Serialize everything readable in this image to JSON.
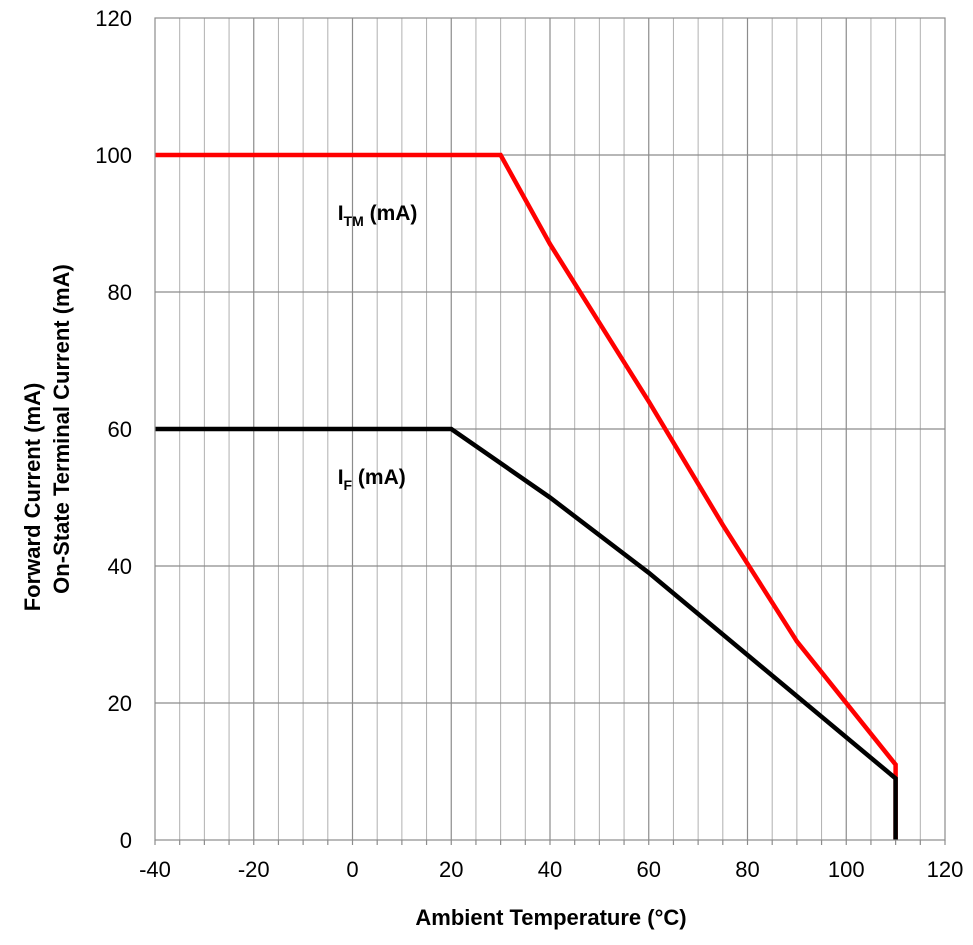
{
  "chart_data": {
    "type": "line",
    "xlabel": "Ambient Temperature (°C)",
    "ylabel_lines": [
      "Forward Current (mA)",
      "On-State Terminal Current (mA)"
    ],
    "xlim": [
      -40,
      120
    ],
    "ylim": [
      0,
      120
    ],
    "x_ticks": [
      "-40",
      "-20",
      "0",
      "20",
      "40",
      "60",
      "80",
      "100",
      "120"
    ],
    "y_ticks": [
      "0",
      "20",
      "40",
      "60",
      "80",
      "100",
      "120"
    ],
    "x_major_step": 20,
    "x_minor_step": 5,
    "y_major_step": 20,
    "grid": true,
    "series": [
      {
        "label_main": "I",
        "label_sub": "TM",
        "label_suffix": " (mA)",
        "color": "#ff0000",
        "points": [
          [
            -40,
            100
          ],
          [
            30,
            100
          ],
          [
            40,
            87
          ],
          [
            60,
            64
          ],
          [
            75,
            46
          ],
          [
            90,
            29
          ],
          [
            110,
            11
          ],
          [
            110,
            0
          ]
        ],
        "label_at": [
          -3,
          90.5
        ]
      },
      {
        "label_main": "I",
        "label_sub": "F",
        "label_suffix": " (mA)",
        "color": "#000000",
        "points": [
          [
            -40,
            60
          ],
          [
            20,
            60
          ],
          [
            40,
            50
          ],
          [
            60,
            39
          ],
          [
            80,
            27
          ],
          [
            110,
            9
          ],
          [
            110,
            0
          ]
        ],
        "label_at": [
          -3,
          52
        ]
      }
    ]
  }
}
